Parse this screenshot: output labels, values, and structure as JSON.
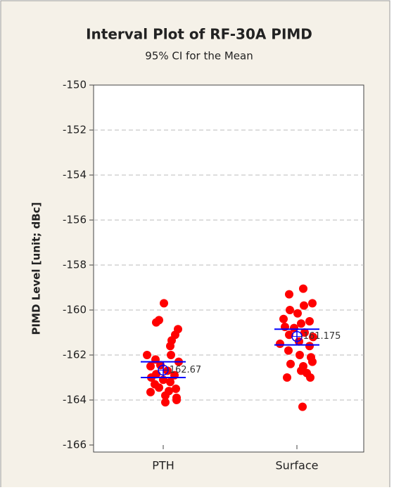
{
  "chart_data": {
    "type": "interval",
    "title": "Interval Plot of RF-30A PIMD",
    "subtitle": "95% CI for the Mean",
    "ylabel": "PIMD Level [unit; dBc]",
    "categories": [
      "PTH",
      "Surface"
    ],
    "ylim": [
      -166,
      -150
    ],
    "yticks": [
      -166,
      -164,
      -162,
      -160,
      -158,
      -156,
      -154,
      -152,
      -150
    ],
    "grid": true,
    "point_color": "#ff0000",
    "ci_color": "#0000ff",
    "points": [
      [
        -159.7,
        -160.45,
        -160.55,
        -160.85,
        -161.1,
        -161.35,
        -161.6,
        -162.0,
        -162.0,
        -162.2,
        -162.3,
        -162.45,
        -162.5,
        -162.7,
        -162.85,
        -162.9,
        -163.0,
        -163.1,
        -163.2,
        -163.3,
        -163.45,
        -163.5,
        -163.6,
        -163.65,
        -163.8,
        -163.9,
        -164.1,
        -164.0
      ],
      [
        -159.05,
        -159.3,
        -159.7,
        -159.8,
        -160.0,
        -160.15,
        -160.4,
        -160.5,
        -160.6,
        -160.75,
        -160.8,
        -161.0,
        -161.1,
        -161.2,
        -161.4,
        -161.5,
        -161.6,
        -161.8,
        -162.0,
        -162.1,
        -162.3,
        -162.4,
        -162.5,
        -162.7,
        -162.8,
        -163.0,
        -163.0,
        -164.3
      ]
    ],
    "means": [
      -162.67,
      -161.175
    ],
    "ci_lower": [
      -163.0,
      -161.55
    ],
    "ci_upper": [
      -162.3,
      -160.85
    ]
  }
}
